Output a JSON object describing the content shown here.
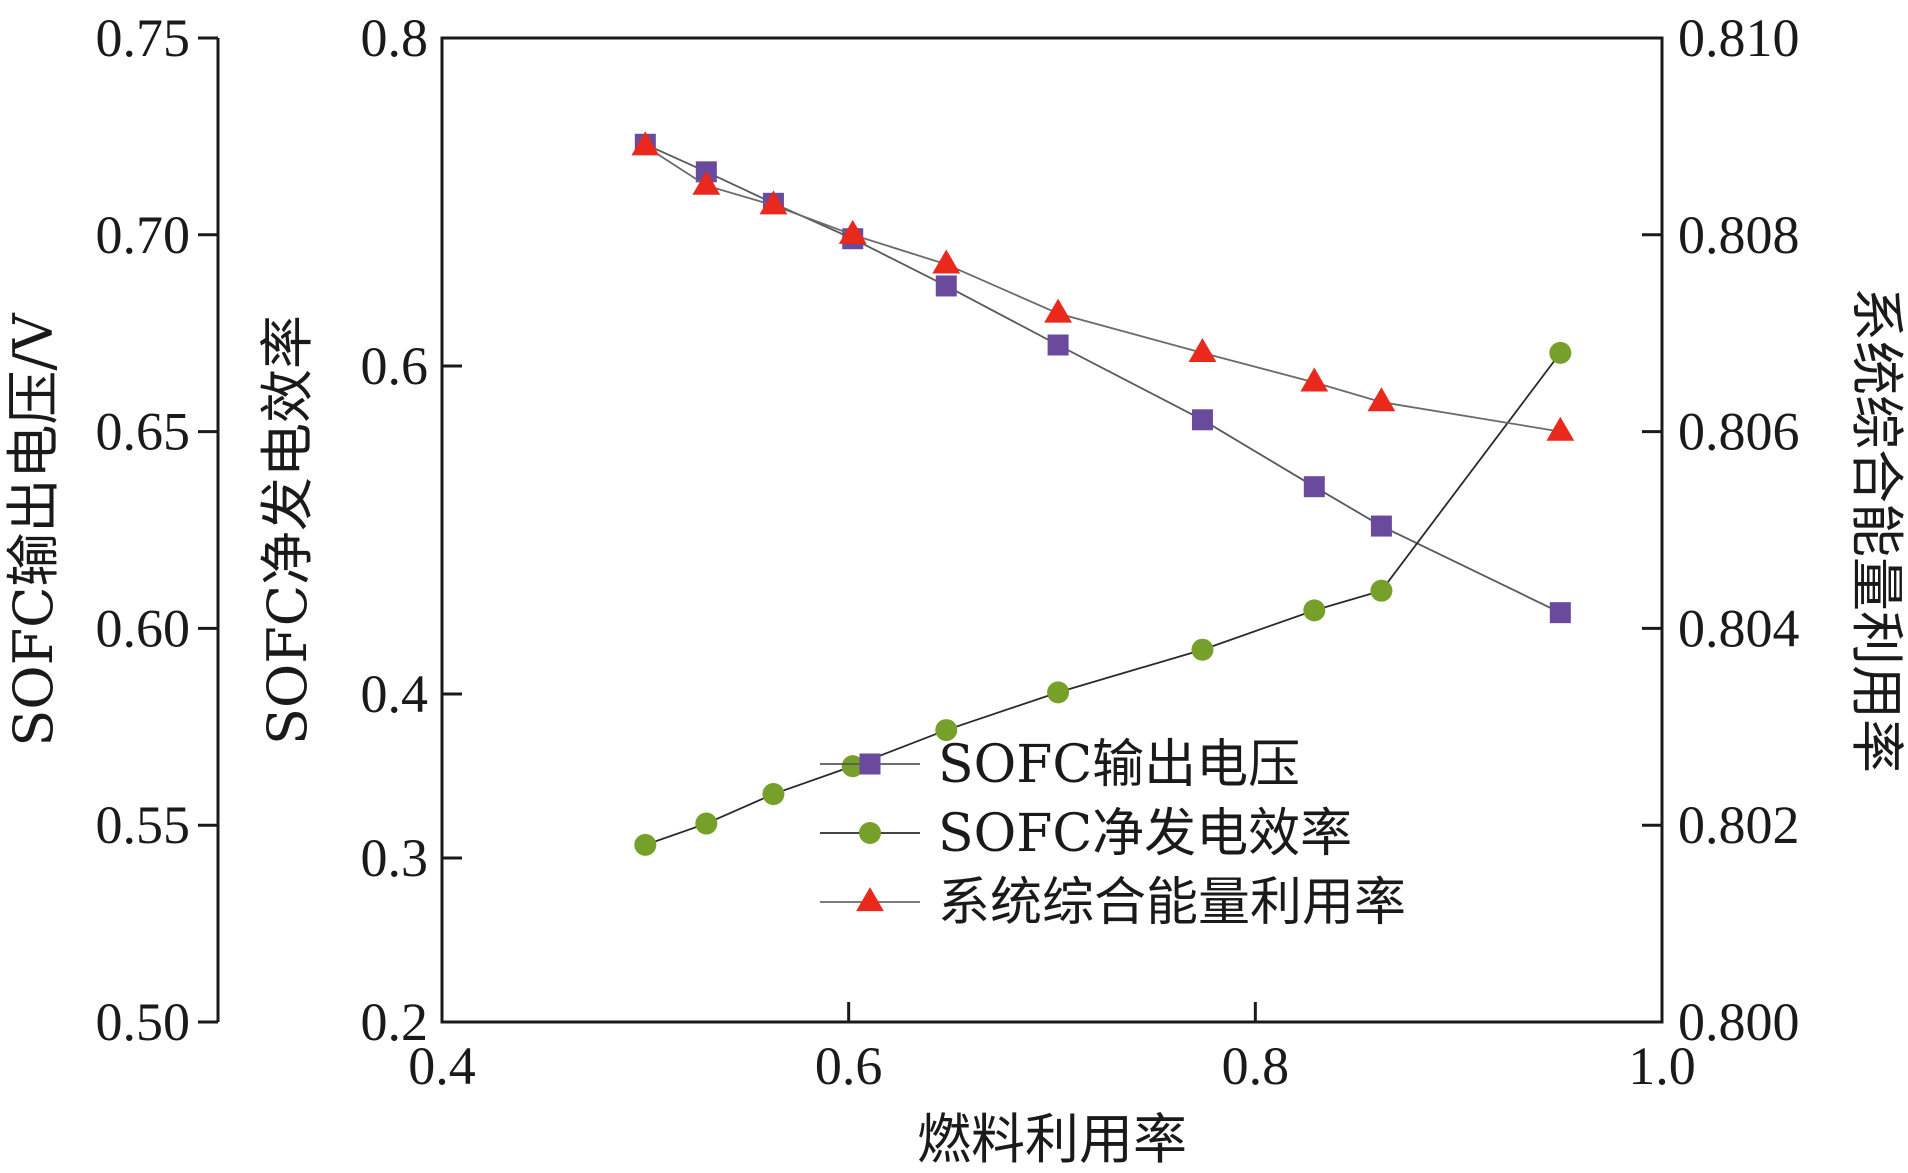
{
  "chart_data": {
    "type": "line",
    "x_axis": {
      "label": "燃料利用率",
      "range": [
        0.4,
        1.0
      ],
      "ticks": [
        "0.4",
        "0.6",
        "0.8",
        "1.0"
      ],
      "tick_values": [
        0.4,
        0.6,
        0.8,
        1.0
      ]
    },
    "y_axis_left": {
      "label": "SOFC输出电压/V",
      "range": [
        0.5,
        0.75
      ],
      "ticks": [
        "0.50",
        "0.55",
        "0.60",
        "0.65",
        "0.70",
        "0.75"
      ],
      "tick_values": [
        0.5,
        0.55,
        0.6,
        0.65,
        0.7,
        0.75
      ]
    },
    "y_axis_inner": {
      "label": "SOFC净发电效率",
      "range": [
        0.2,
        0.8
      ],
      "ticks": [
        "0.2",
        "0.3",
        "0.4",
        "0.6",
        "0.8"
      ],
      "tick_values": [
        0.2,
        0.3,
        0.4,
        0.6,
        0.8
      ]
    },
    "y_axis_right": {
      "label": "系统综合能量利用率",
      "range": [
        0.8,
        0.81
      ],
      "ticks": [
        "0.800",
        "0.802",
        "0.804",
        "0.806",
        "0.808",
        "0.810"
      ],
      "tick_values": [
        0.8,
        0.802,
        0.804,
        0.806,
        0.808,
        0.81
      ]
    },
    "series": [
      {
        "name": "SOFC输出电压",
        "axis": "left",
        "marker": "square",
        "color": "#6a4a9c",
        "x": [
          0.5,
          0.53,
          0.563,
          0.602,
          0.648,
          0.703,
          0.774,
          0.829,
          0.862,
          0.95
        ],
        "y": [
          0.723,
          0.716,
          0.708,
          0.699,
          0.687,
          0.672,
          0.653,
          0.636,
          0.626,
          0.604
        ]
      },
      {
        "name": "SOFC净发电效率",
        "axis": "inner",
        "marker": "circle",
        "color": "#77a02a",
        "x": [
          0.5,
          0.53,
          0.563,
          0.602,
          0.648,
          0.703,
          0.774,
          0.829,
          0.862,
          0.95
        ],
        "y": [
          0.308,
          0.321,
          0.339,
          0.356,
          0.378,
          0.401,
          0.427,
          0.451,
          0.463,
          0.608
        ]
      },
      {
        "name": "系统综合能量利用率",
        "axis": "right",
        "marker": "triangle",
        "color": "#e8291c",
        "x": [
          0.5,
          0.53,
          0.563,
          0.602,
          0.648,
          0.703,
          0.774,
          0.829,
          0.862,
          0.95
        ],
        "y": [
          0.8089,
          0.8085,
          0.8083,
          0.808,
          0.8077,
          0.8072,
          0.8068,
          0.8065,
          0.8063,
          0.806
        ]
      }
    ],
    "legend": {
      "placement": "bottom-right",
      "entries": [
        "SOFC输出电压",
        "SOFC净发电效率",
        "系统综合能量利用率"
      ]
    },
    "grid": false
  }
}
